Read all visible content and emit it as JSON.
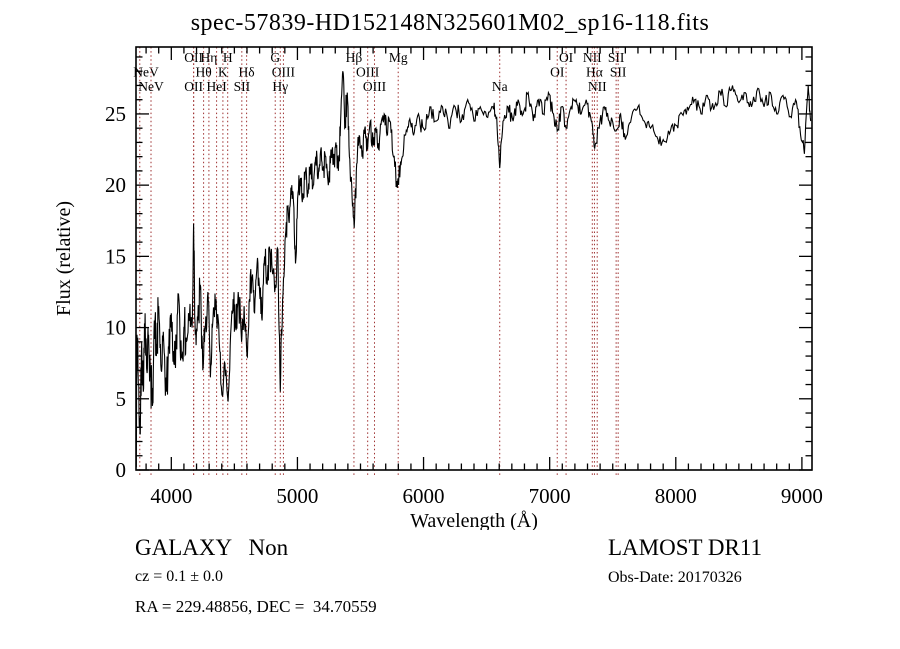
{
  "title": "spec-57839-HD152148N325601M02_sp16-118.fits",
  "footer": {
    "class_line": "GALAXY   Non",
    "cz_line": "cz = 0.1 ± 0.0",
    "ra_dec_line": "RA = 229.48856, DEC =  34.70559",
    "survey": "LAMOST DR11",
    "obs_date_line": "Obs-Date: 20170326"
  },
  "chart_data": {
    "type": "line",
    "title": "spec-57839-HD152148N325601M02_sp16-118.fits",
    "xlabel": "Wavelength (Å)",
    "ylabel": "Flux (relative)",
    "xlim": [
      3720,
      9080
    ],
    "ylim": [
      0,
      29.7
    ],
    "x_major_ticks": [
      4000,
      5000,
      6000,
      7000,
      8000,
      9000
    ],
    "x_minor_step": 100,
    "y_major_ticks": [
      0,
      5,
      10,
      15,
      20,
      25
    ],
    "y_minor_step": 1,
    "grid": false,
    "legend": "none",
    "colors": {
      "spectrum": "#000000",
      "line_marker": "#9e3030",
      "frame": "#000000",
      "text": "#000000",
      "background": "#ffffff"
    },
    "spectral_lines": [
      {
        "label": "NeV",
        "row": 2,
        "wavelength": 3750
      },
      {
        "label": "NeV",
        "row": 3,
        "wavelength": 3839
      },
      {
        "label": "OII",
        "row": 1,
        "wavelength": 4177
      },
      {
        "label": "OII",
        "row": 3,
        "wavelength": 4177
      },
      {
        "label": "Hη",
        "row": 1,
        "wavelength": 4298
      },
      {
        "label": "H",
        "row": 1,
        "wavelength": 4447
      },
      {
        "label": "Hθ",
        "row": 2,
        "wavelength": 4256
      },
      {
        "label": "K",
        "row": 2,
        "wavelength": 4409
      },
      {
        "label": "HeI",
        "row": 3,
        "wavelength": 4359
      },
      {
        "label": "Hδ",
        "row": 2,
        "wavelength": 4597
      },
      {
        "label": "SII",
        "row": 3,
        "wavelength": 4559
      },
      {
        "label": "G",
        "row": 1,
        "wavelength": 4824
      },
      {
        "label": "OIII",
        "row": 2,
        "wavelength": 4889
      },
      {
        "label": "Hγ",
        "row": 3,
        "wavelength": 4864
      },
      {
        "label": "Hβ",
        "row": 1,
        "wavelength": 5448
      },
      {
        "label": "OIII",
        "row": 2,
        "wavelength": 5557
      },
      {
        "label": "OIII",
        "row": 3,
        "wavelength": 5611
      },
      {
        "label": "Mg",
        "row": 1,
        "wavelength": 5799
      },
      {
        "label": "Na",
        "row": 3,
        "wavelength": 6604
      },
      {
        "label": "OI",
        "row": 2,
        "wavelength": 7060
      },
      {
        "label": "OI",
        "row": 1,
        "wavelength": 7130
      },
      {
        "label": "NII",
        "row": 1,
        "wavelength": 7338
      },
      {
        "label": "Hα",
        "row": 2,
        "wavelength": 7355
      },
      {
        "label": "NII",
        "row": 3,
        "wavelength": 7377
      },
      {
        "label": "SII",
        "row": 1,
        "wavelength": 7527
      },
      {
        "label": "SII",
        "row": 2,
        "wavelength": 7543
      }
    ],
    "flux_points": [
      [
        3722,
        0.2
      ],
      [
        3728,
        9.5
      ],
      [
        3740,
        6.0
      ],
      [
        3752,
        2.5
      ],
      [
        3765,
        9.0
      ],
      [
        3778,
        5.5
      ],
      [
        3792,
        11.0
      ],
      [
        3806,
        7.0
      ],
      [
        3820,
        9.5
      ],
      [
        3835,
        6.5
      ],
      [
        3850,
        4.5
      ],
      [
        3865,
        10.5
      ],
      [
        3882,
        8.0
      ],
      [
        3900,
        11.5
      ],
      [
        3920,
        7.0
      ],
      [
        3940,
        9.0
      ],
      [
        3960,
        5.5
      ],
      [
        3980,
        8.5
      ],
      [
        4000,
        11.0
      ],
      [
        4020,
        7.5
      ],
      [
        4040,
        9.0
      ],
      [
        4060,
        12.0
      ],
      [
        4080,
        8.0
      ],
      [
        4100,
        10.0
      ],
      [
        4120,
        9.0
      ],
      [
        4145,
        11.0
      ],
      [
        4165,
        10.0
      ],
      [
        4177,
        17.3
      ],
      [
        4190,
        9.5
      ],
      [
        4210,
        10.5
      ],
      [
        4230,
        13.0
      ],
      [
        4250,
        7.0
      ],
      [
        4270,
        10.0
      ],
      [
        4290,
        12.5
      ],
      [
        4310,
        6.5
      ],
      [
        4330,
        10.5
      ],
      [
        4355,
        12.0
      ],
      [
        4380,
        9.0
      ],
      [
        4405,
        5.2
      ],
      [
        4425,
        7.5
      ],
      [
        4450,
        4.8
      ],
      [
        4470,
        9.5
      ],
      [
        4490,
        12.0
      ],
      [
        4510,
        10.0
      ],
      [
        4530,
        12.5
      ],
      [
        4557,
        9.0
      ],
      [
        4577,
        11.5
      ],
      [
        4600,
        8.0
      ],
      [
        4620,
        12.0
      ],
      [
        4640,
        13.5
      ],
      [
        4660,
        11.0
      ],
      [
        4680,
        14.5
      ],
      [
        4700,
        12.5
      ],
      [
        4720,
        10.5
      ],
      [
        4740,
        15.0
      ],
      [
        4760,
        13.0
      ],
      [
        4780,
        15.5
      ],
      [
        4800,
        14.0
      ],
      [
        4824,
        13.0
      ],
      [
        4845,
        15.5
      ],
      [
        4864,
        5.5
      ],
      [
        4882,
        12.0
      ],
      [
        4905,
        16.5
      ],
      [
        4925,
        18.5
      ],
      [
        4945,
        19.0
      ],
      [
        4965,
        19.5
      ],
      [
        4985,
        14.5
      ],
      [
        5005,
        19.5
      ],
      [
        5025,
        20.5
      ],
      [
        5045,
        19.0
      ],
      [
        5065,
        21.0
      ],
      [
        5085,
        19.5
      ],
      [
        5105,
        21.5
      ],
      [
        5125,
        20.0
      ],
      [
        5145,
        22.0
      ],
      [
        5165,
        20.5
      ],
      [
        5185,
        22.5
      ],
      [
        5205,
        21.0
      ],
      [
        5225,
        22.0
      ],
      [
        5245,
        20.0
      ],
      [
        5265,
        22.5
      ],
      [
        5285,
        21.5
      ],
      [
        5305,
        23.0
      ],
      [
        5325,
        21.0
      ],
      [
        5342,
        24.5
      ],
      [
        5360,
        28.0
      ],
      [
        5375,
        24.0
      ],
      [
        5395,
        26.5
      ],
      [
        5412,
        22.0
      ],
      [
        5430,
        20.0
      ],
      [
        5450,
        17.0
      ],
      [
        5470,
        21.5
      ],
      [
        5490,
        23.5
      ],
      [
        5512,
        22.0
      ],
      [
        5534,
        24.0
      ],
      [
        5556,
        22.5
      ],
      [
        5578,
        24.5
      ],
      [
        5600,
        23.0
      ],
      [
        5622,
        24.0
      ],
      [
        5644,
        22.5
      ],
      [
        5666,
        24.5
      ],
      [
        5688,
        25.0
      ],
      [
        5710,
        23.5
      ],
      [
        5733,
        24.5
      ],
      [
        5762,
        22.0
      ],
      [
        5792,
        19.8
      ],
      [
        5822,
        21.5
      ],
      [
        5852,
        23.5
      ],
      [
        5885,
        24.5
      ],
      [
        5920,
        23.5
      ],
      [
        5960,
        25.0
      ],
      [
        6000,
        24.0
      ],
      [
        6050,
        25.5
      ],
      [
        6100,
        24.5
      ],
      [
        6150,
        25.5
      ],
      [
        6200,
        24.0
      ],
      [
        6250,
        25.5
      ],
      [
        6300,
        24.5
      ],
      [
        6350,
        26.0
      ],
      [
        6400,
        24.5
      ],
      [
        6450,
        25.5
      ],
      [
        6500,
        24.8
      ],
      [
        6550,
        25.5
      ],
      [
        6580,
        24.8
      ],
      [
        6604,
        21.2
      ],
      [
        6630,
        24.5
      ],
      [
        6670,
        25.5
      ],
      [
        6710,
        24.5
      ],
      [
        6750,
        26.0
      ],
      [
        6790,
        25.0
      ],
      [
        6830,
        26.5
      ],
      [
        6870,
        24.5
      ],
      [
        6910,
        26.0
      ],
      [
        6950,
        25.0
      ],
      [
        6990,
        26.5
      ],
      [
        7030,
        25.0
      ],
      [
        7060,
        23.8
      ],
      [
        7095,
        25.5
      ],
      [
        7130,
        24.0
      ],
      [
        7170,
        25.5
      ],
      [
        7210,
        26.0
      ],
      [
        7250,
        25.0
      ],
      [
        7290,
        26.0
      ],
      [
        7330,
        24.5
      ],
      [
        7357,
        22.6
      ],
      [
        7392,
        24.0
      ],
      [
        7432,
        25.5
      ],
      [
        7472,
        24.5
      ],
      [
        7527,
        23.8
      ],
      [
        7562,
        25.0
      ],
      [
        7600,
        23.2
      ],
      [
        7650,
        24.8
      ],
      [
        7700,
        25.5
      ],
      [
        7750,
        24.5
      ],
      [
        7800,
        24.0
      ],
      [
        7850,
        23.4
      ],
      [
        7900,
        23.2
      ],
      [
        7950,
        23.6
      ],
      [
        8000,
        24.2
      ],
      [
        8050,
        25.0
      ],
      [
        8100,
        25.3
      ],
      [
        8150,
        26.0
      ],
      [
        8200,
        25.0
      ],
      [
        8250,
        26.3
      ],
      [
        8300,
        25.3
      ],
      [
        8350,
        26.6
      ],
      [
        8400,
        25.5
      ],
      [
        8450,
        27.0
      ],
      [
        8500,
        25.8
      ],
      [
        8550,
        26.5
      ],
      [
        8600,
        25.5
      ],
      [
        8650,
        26.8
      ],
      [
        8700,
        25.5
      ],
      [
        8750,
        26.5
      ],
      [
        8800,
        25.0
      ],
      [
        8850,
        26.3
      ],
      [
        8900,
        24.8
      ],
      [
        8950,
        26.0
      ],
      [
        8990,
        23.5
      ],
      [
        9020,
        22.2
      ],
      [
        9050,
        27.0
      ],
      [
        9070,
        24.5
      ]
    ],
    "noise_profile": [
      {
        "up_to": 4250,
        "amp": 2.1
      },
      {
        "up_to": 4950,
        "amp": 1.5
      },
      {
        "up_to": 5600,
        "amp": 1.1
      },
      {
        "up_to": 6300,
        "amp": 0.8
      },
      {
        "up_to": 9080,
        "amp": 0.6
      }
    ],
    "noise_subsamples": 6
  }
}
